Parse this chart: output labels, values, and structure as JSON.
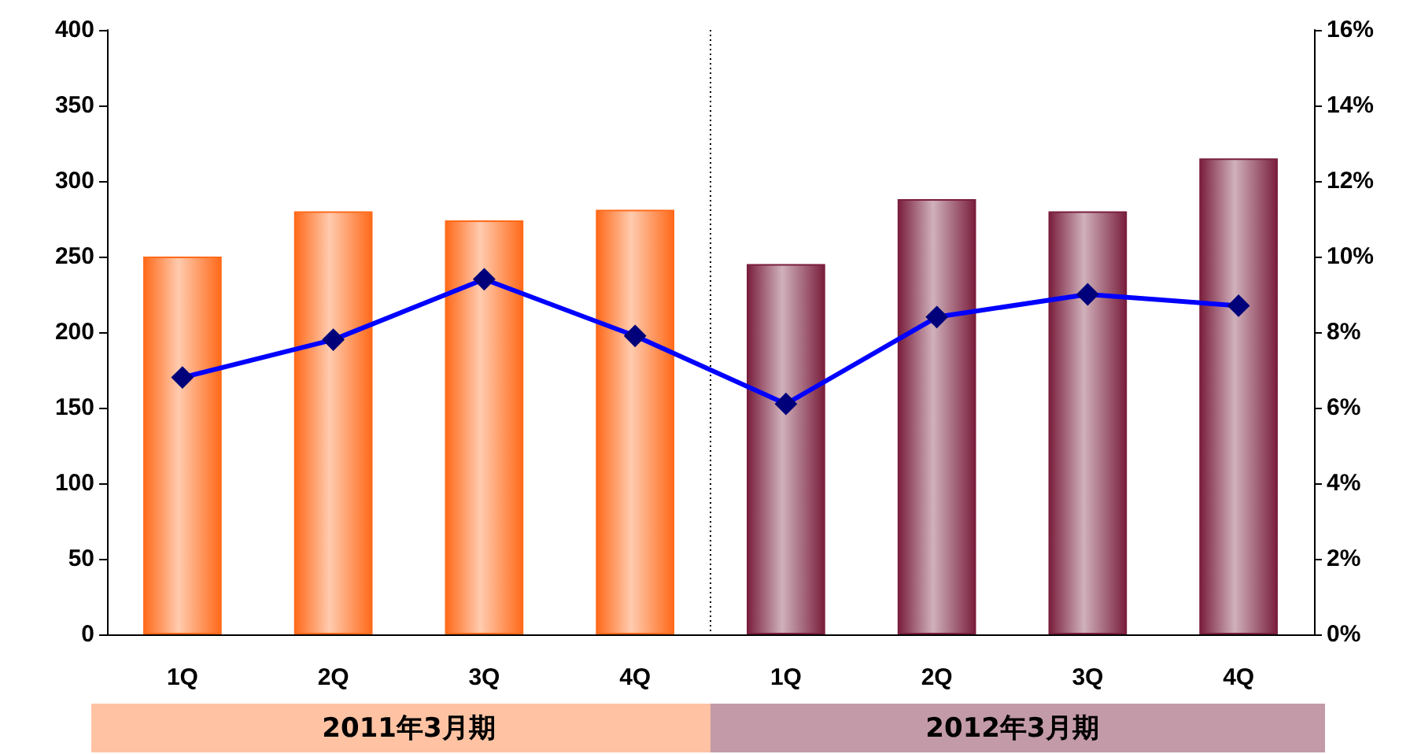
{
  "chart_data": {
    "type": "bar",
    "categories": [
      "1Q",
      "2Q",
      "3Q",
      "4Q",
      "1Q",
      "2Q",
      "3Q",
      "4Q"
    ],
    "series": [
      {
        "values": [
          250,
          280,
          274,
          281,
          245,
          288,
          280,
          315
        ],
        "colors": [
          "#ff6a1a",
          "#ff6a1a",
          "#ff6a1a",
          "#ff6a1a",
          "#7a1f3d",
          "#7a1f3d",
          "#7a1f3d",
          "#7a1f3d"
        ]
      },
      {
        "type": "line",
        "axis": "y2",
        "color": "#0000ff",
        "values": [
          6.8,
          7.8,
          9.4,
          7.9,
          6.1,
          8.4,
          9.0,
          8.7
        ]
      }
    ],
    "ylim": [
      0,
      400
    ],
    "yticks": [
      0,
      50,
      100,
      150,
      200,
      250,
      300,
      350,
      400
    ],
    "y2lim": [
      0,
      16
    ],
    "y2ticks": [
      {
        "value": 0,
        "label": "0%"
      },
      {
        "value": 2,
        "label": "2%"
      },
      {
        "value": 4,
        "label": "4%"
      },
      {
        "value": 6,
        "label": "6%"
      },
      {
        "value": 8,
        "label": "8%"
      },
      {
        "value": 10,
        "label": "10%"
      },
      {
        "value": 12,
        "label": "12%"
      },
      {
        "value": 14,
        "label": "14%"
      },
      {
        "value": 16,
        "label": "16%"
      }
    ],
    "annotations": [
      "2011年3月期",
      "2012年3月期"
    ],
    "marker": "diamond"
  }
}
